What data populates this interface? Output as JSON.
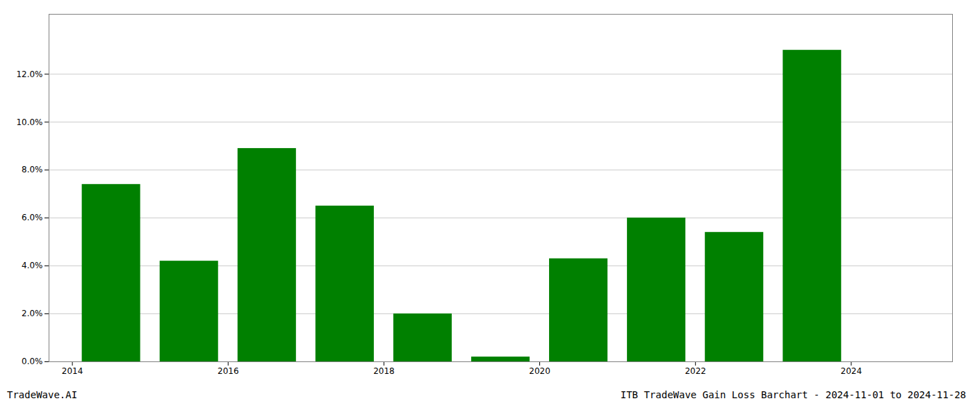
{
  "chart_data": {
    "type": "bar",
    "x": [
      2014,
      2015,
      2016,
      2017,
      2018,
      2019,
      2020,
      2021,
      2022,
      2023,
      2024
    ],
    "values": [
      0.074,
      0.042,
      0.089,
      0.065,
      0.02,
      0.002,
      0.043,
      0.06,
      0.054,
      0.13,
      0.0
    ],
    "color": "#008000",
    "xlim": [
      2013.2,
      2024.8
    ],
    "xticks": [
      {
        "value": 2013.5,
        "label": "2014"
      },
      {
        "value": 2015.5,
        "label": "2016"
      },
      {
        "value": 2017.5,
        "label": "2018"
      },
      {
        "value": 2019.5,
        "label": "2020"
      },
      {
        "value": 2021.5,
        "label": "2022"
      },
      {
        "value": 2023.5,
        "label": "2024"
      }
    ],
    "ylim": [
      0,
      0.145
    ],
    "yticks": [
      {
        "value": 0.0,
        "label": "0.0%"
      },
      {
        "value": 0.02,
        "label": "2.0%"
      },
      {
        "value": 0.04,
        "label": "4.0%"
      },
      {
        "value": 0.06,
        "label": "6.0%"
      },
      {
        "value": 0.08,
        "label": "8.0%"
      },
      {
        "value": 0.1,
        "label": "10.0%"
      },
      {
        "value": 0.12,
        "label": "12.0%"
      }
    ],
    "grid": true,
    "annotations": [
      "TradeWave.AI",
      "ITB TradeWave Gain Loss Barchart - 2024-11-01 to 2024-11-28"
    ]
  }
}
